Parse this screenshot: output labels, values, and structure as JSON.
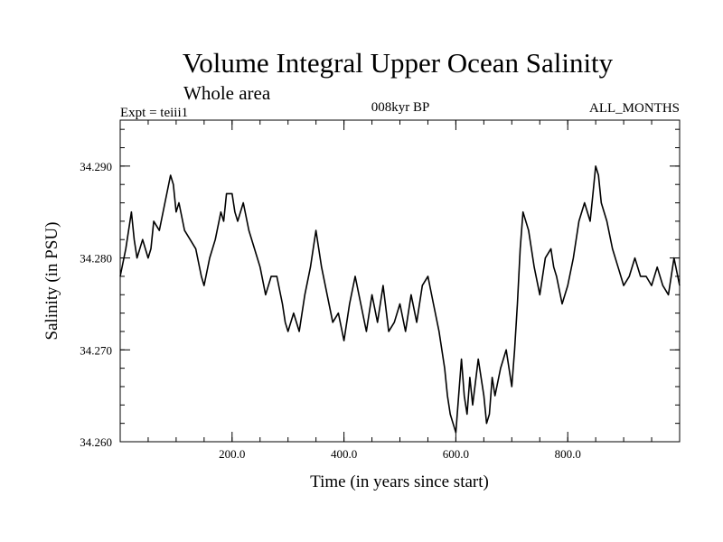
{
  "chart_data": {
    "type": "line",
    "title": "Volume Integral Upper Ocean Salinity",
    "subtitle": "Whole area",
    "expt_label": "Expt = teiii1",
    "period_label": "008kyr BP",
    "months_label": "ALL_MONTHS",
    "xlabel": "Time (in years since start)",
    "ylabel": "Salinity (in PSU)",
    "xlim": [
      0,
      1000
    ],
    "ylim": [
      34.26,
      34.295
    ],
    "xticks": [
      200,
      400,
      600,
      800
    ],
    "xtick_labels": [
      "200.0",
      "400.0",
      "600.0",
      "800.0"
    ],
    "yticks": [
      34.26,
      34.27,
      34.28,
      34.29
    ],
    "ytick_labels": [
      "34.260",
      "34.270",
      "34.280",
      "34.290"
    ],
    "grid": false,
    "line_color": "#000000",
    "series": [
      {
        "x": [
          0,
          10,
          20,
          25,
          30,
          40,
          50,
          55,
          60,
          70,
          80,
          90,
          95,
          100,
          105,
          115,
          125,
          135,
          145,
          150,
          160,
          170,
          180,
          185,
          190,
          200,
          205,
          210,
          220,
          230,
          240,
          250,
          260,
          270,
          280,
          290,
          295,
          300,
          310,
          320,
          330,
          340,
          350,
          360,
          370,
          380,
          390,
          400,
          410,
          420,
          430,
          440,
          450,
          460,
          470,
          480,
          490,
          500,
          510,
          520,
          530,
          540,
          550,
          560,
          570,
          580,
          585,
          590,
          595,
          600,
          605,
          610,
          615,
          620,
          625,
          630,
          640,
          650,
          655,
          660,
          665,
          670,
          680,
          690,
          700,
          705,
          710,
          715,
          720,
          725,
          730,
          740,
          750,
          760,
          770,
          775,
          780,
          790,
          800,
          810,
          820,
          830,
          840,
          845,
          850,
          855,
          860,
          870,
          880,
          890,
          900,
          910,
          920,
          930,
          940,
          950,
          960,
          970,
          980,
          990,
          1000
        ],
        "y": [
          34.278,
          34.281,
          34.285,
          34.282,
          34.28,
          34.282,
          34.28,
          34.281,
          34.284,
          34.283,
          34.286,
          34.289,
          34.288,
          34.285,
          34.286,
          34.283,
          34.282,
          34.281,
          34.278,
          34.277,
          34.28,
          34.282,
          34.285,
          34.284,
          34.287,
          34.287,
          34.285,
          34.284,
          34.286,
          34.283,
          34.281,
          34.279,
          34.276,
          34.278,
          34.278,
          34.275,
          34.273,
          34.272,
          34.274,
          34.272,
          34.276,
          34.279,
          34.283,
          34.279,
          34.276,
          34.273,
          34.274,
          34.271,
          34.275,
          34.278,
          34.275,
          34.272,
          34.276,
          34.273,
          34.277,
          34.272,
          34.273,
          34.275,
          34.272,
          34.276,
          34.273,
          34.277,
          34.278,
          34.275,
          34.272,
          34.268,
          34.265,
          34.263,
          34.262,
          34.261,
          34.265,
          34.269,
          34.265,
          34.263,
          34.267,
          34.264,
          34.269,
          34.265,
          34.262,
          34.263,
          34.267,
          34.265,
          34.268,
          34.27,
          34.266,
          34.27,
          34.275,
          34.281,
          34.285,
          34.284,
          34.283,
          34.279,
          34.276,
          34.28,
          34.281,
          34.279,
          34.278,
          34.275,
          34.277,
          34.28,
          34.284,
          34.286,
          34.284,
          34.287,
          34.29,
          34.289,
          34.286,
          34.284,
          34.281,
          34.279,
          34.277,
          34.278,
          34.28,
          34.278,
          34.278,
          34.277,
          34.279,
          34.277,
          34.276,
          34.28,
          34.277
        ]
      }
    ]
  }
}
